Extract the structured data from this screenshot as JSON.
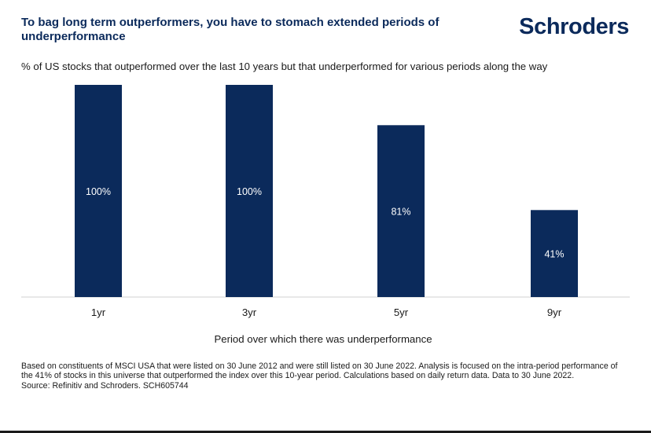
{
  "header": {
    "title": "To bag long term outperformers, you have to stomach extended periods of underperformance",
    "logo_text": "Schroders"
  },
  "subtitle": "% of US stocks that outperformed over the last 10 years but that underperformed for various periods along the way",
  "chart_data": {
    "type": "bar",
    "categories": [
      "1yr",
      "3yr",
      "5yr",
      "9yr"
    ],
    "values": [
      100,
      100,
      81,
      41
    ],
    "data_labels": [
      "100%",
      "100%",
      "81%",
      "41%"
    ],
    "xlabel": "Period over which there was underperformance",
    "ylabel": "",
    "ylim": [
      0,
      100
    ],
    "grid": false,
    "legend": "none",
    "bar_color": "#0b2a5b",
    "label_color": "#ffffff",
    "axis_color": "#d0d0d0"
  },
  "footnote": {
    "text": "Based on constituents of MSCI USA that were listed on 30 June 2012 and were still listed on 30 June 2022. Analysis is focused on the intra-period performance of the 41% of stocks in this universe that outperformed the index over this 10-year period. Calculations based on daily return data. Data to 30 June 2022.",
    "source": "Source: Refinitiv and Schroders. SCH605744"
  }
}
